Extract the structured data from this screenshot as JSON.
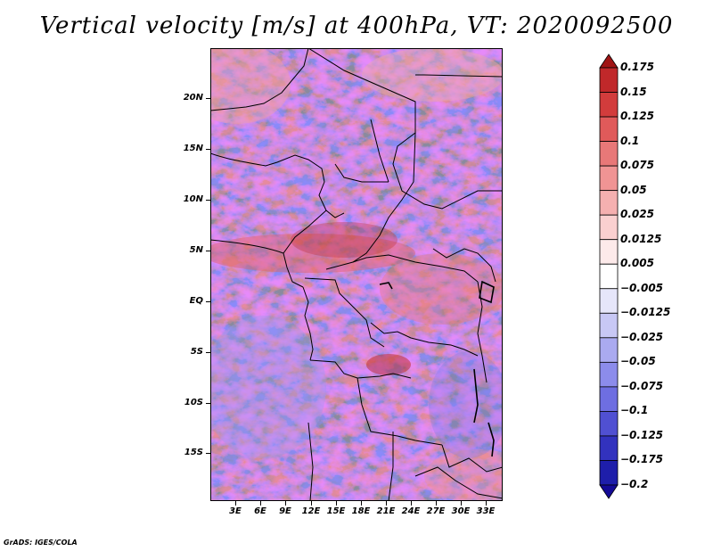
{
  "title": "Vertical velocity [m/s] at 400hPa, VT: 2020092500",
  "footer": "GrADS: IGES/COLA",
  "map": {
    "lat_ticks": [
      "20N",
      "15N",
      "10N",
      "5N",
      "EQ",
      "5S",
      "10S",
      "15S"
    ],
    "lon_ticks": [
      "3E",
      "6E",
      "9E",
      "12E",
      "15E",
      "18E",
      "21E",
      "24E",
      "27E",
      "30E",
      "33E"
    ],
    "lat_range": [
      -20,
      24.5
    ],
    "lon_range": [
      0,
      35
    ]
  },
  "colorbar": {
    "levels": [
      "0.175",
      "0.15",
      "0.125",
      "0.1",
      "0.075",
      "0.05",
      "0.025",
      "0.0125",
      "0.005",
      "−0.005",
      "−0.0125",
      "−0.025",
      "−0.05",
      "−0.075",
      "−0.1",
      "−0.125",
      "−0.175",
      "−0.2"
    ],
    "colors": [
      "#a01414",
      "#c0282a",
      "#d23c3c",
      "#e05a5a",
      "#e87878",
      "#f09494",
      "#f5b0b0",
      "#fad0d0",
      "#fdeaea",
      "#ffffff",
      "#e6e6fa",
      "#c8c8f5",
      "#aaaaf0",
      "#8c8ceb",
      "#6e6ee1",
      "#5050d2",
      "#3232be",
      "#1e1eaa",
      "#140a96"
    ]
  }
}
